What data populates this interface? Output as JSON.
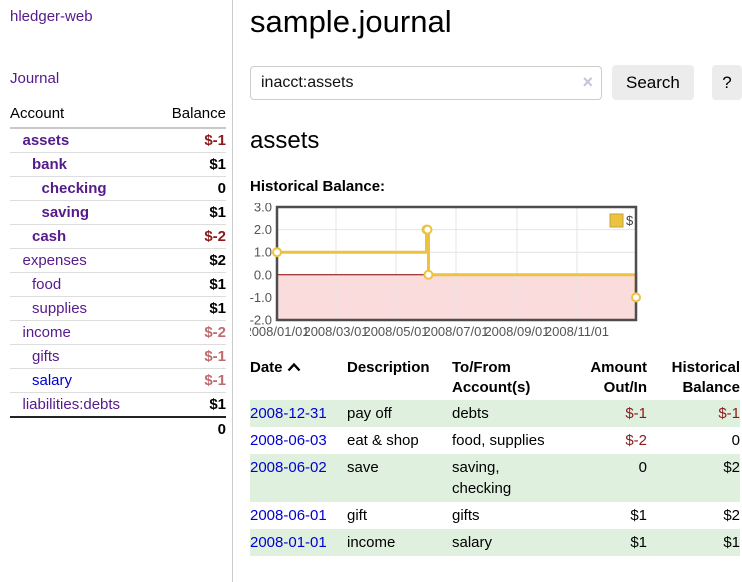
{
  "colors": {
    "accent_purple": "#551a8b",
    "link_blue": "#0000d0",
    "negative_strong": "#8b1a1a",
    "negative_soft": "#bf6b6e",
    "stripe_green": "#dff0df",
    "chart_line": "#edc240",
    "chart_marker_fill": "#ffffff",
    "chart_negative_fill": "#fbdcdc",
    "chart_zero_line": "#8b0000",
    "chart_grid": "#e4e4e4",
    "chart_border": "#4d4d4d",
    "chart_tick_text": "#545454",
    "chart_legend_border": "#c5a42e"
  },
  "sidebar": {
    "app_title": "hledger-web",
    "nav": [
      {
        "label": "Journal"
      }
    ],
    "accounts_table": {
      "headers": [
        "Account",
        "Balance"
      ],
      "rows": [
        {
          "account": "assets",
          "depth": 1,
          "bold": true,
          "balance": "$-1"
        },
        {
          "account": "bank",
          "depth": 2,
          "bold": true,
          "balance": "$1"
        },
        {
          "account": "checking",
          "depth": 3,
          "bold": true,
          "balance": "0"
        },
        {
          "account": "saving",
          "depth": 3,
          "bold": true,
          "balance": "$1"
        },
        {
          "account": "cash",
          "depth": 2,
          "bold": true,
          "balance": "$-2"
        },
        {
          "account": "expenses",
          "depth": 1,
          "bold": false,
          "balance": "$2"
        },
        {
          "account": "food",
          "depth": 2,
          "bold": false,
          "balance": "$1"
        },
        {
          "account": "supplies",
          "depth": 2,
          "bold": false,
          "balance": "$1"
        },
        {
          "account": "income",
          "depth": 1,
          "bold": false,
          "balance": "$-2",
          "soft": true
        },
        {
          "account": "gifts",
          "depth": 2,
          "bold": false,
          "balance": "$-1",
          "soft": true
        },
        {
          "account": "salary",
          "depth": 2,
          "bold": false,
          "balance": "$-1",
          "soft": true,
          "unvisited": true
        },
        {
          "account": "liabilities:debts",
          "depth": 1,
          "bold": false,
          "balance": "$1"
        }
      ],
      "total": "0"
    }
  },
  "header": {
    "title": "sample.journal"
  },
  "search": {
    "value": "inacct:assets",
    "clear_icon": "×",
    "button_label": "Search",
    "help_label": "?"
  },
  "main": {
    "account_heading": "assets",
    "chart_title": "Historical Balance:"
  },
  "chart_data": {
    "type": "line",
    "step": true,
    "title": "Historical Balance:",
    "legend": "$",
    "legend_position": "top-right",
    "grid": true,
    "xlim": [
      "2008-01-01",
      "2008-12-31"
    ],
    "ylim": [
      -2,
      3
    ],
    "series": [
      {
        "name": "$",
        "points": [
          [
            "2008-01-01",
            1
          ],
          [
            "2008-06-01",
            2
          ],
          [
            "2008-06-02",
            2
          ],
          [
            "2008-06-03",
            0
          ],
          [
            "2008-12-31",
            -1
          ]
        ]
      }
    ],
    "x_ticks": [
      {
        "date": "2008-01-01",
        "label": "2008/01/01"
      },
      {
        "date": "2008-03-01",
        "label": "2008/03/01"
      },
      {
        "date": "2008-05-01",
        "label": "2008/05/01"
      },
      {
        "date": "2008-07-01",
        "label": "2008/07/01"
      },
      {
        "date": "2008-09-01",
        "label": "2008/09/01"
      },
      {
        "date": "2008-11-01",
        "label": "2008/11/01"
      }
    ],
    "y_ticks": [
      {
        "value": 3,
        "label": "3.0"
      },
      {
        "value": 2,
        "label": "2.0"
      },
      {
        "value": 1,
        "label": "1.0"
      },
      {
        "value": 0,
        "label": "0.0"
      },
      {
        "value": -1,
        "label": "-1.0"
      },
      {
        "value": -2,
        "label": "-2.0"
      }
    ],
    "negative_region_shaded": true
  },
  "register": {
    "headers": {
      "date": "Date",
      "description": "Description",
      "accounts": [
        "To/From",
        "Account(s)"
      ],
      "amount": [
        "Amount",
        "Out/In"
      ],
      "balance": [
        "Historical",
        "Balance"
      ]
    },
    "rows": [
      {
        "date": "2008-12-31",
        "description": "pay off",
        "accounts": "debts",
        "amount": "$-1",
        "balance": "$-1"
      },
      {
        "date": "2008-06-03",
        "description": "eat & shop",
        "accounts": "food, supplies",
        "amount": "$-2",
        "balance": "0"
      },
      {
        "date": "2008-06-02",
        "description": "save",
        "accounts": "saving, checking",
        "amount": "0",
        "balance": "$2"
      },
      {
        "date": "2008-06-01",
        "description": "gift",
        "accounts": "gifts",
        "amount": "$1",
        "balance": "$2"
      },
      {
        "date": "2008-01-01",
        "description": "income",
        "accounts": "salary",
        "amount": "$1",
        "balance": "$1"
      }
    ]
  }
}
